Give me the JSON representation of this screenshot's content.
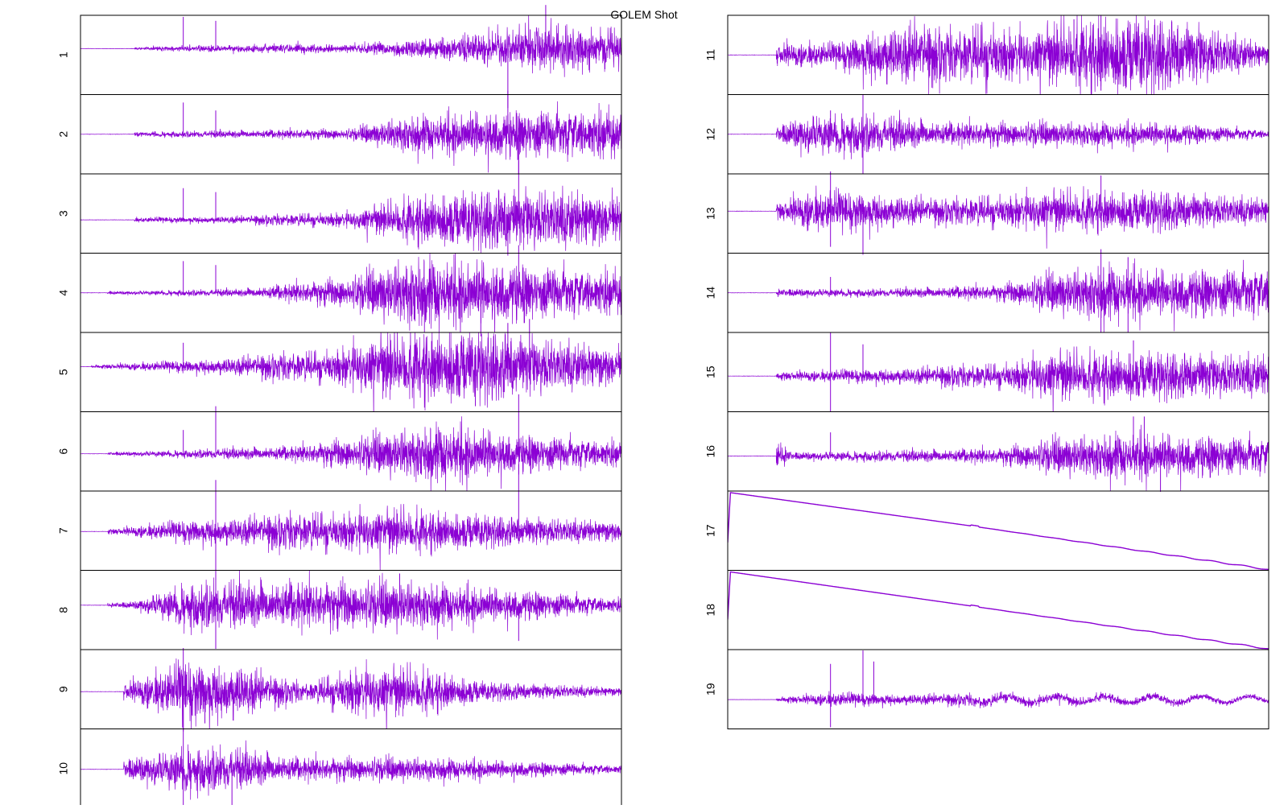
{
  "chart_data": {
    "type": "line",
    "title": "GOLEM Shot",
    "xlabel": "",
    "ylabel": "",
    "grid": false,
    "legend": "none",
    "series_color": "#8b00d4",
    "panels": [
      {
        "label": "1",
        "kind": "noise",
        "baseline": 0.42,
        "onset": 0.1,
        "env": [
          [
            0,
            0
          ],
          [
            0.1,
            0.02
          ],
          [
            0.3,
            0.05
          ],
          [
            0.5,
            0.06
          ],
          [
            0.6,
            0.1
          ],
          [
            0.75,
            0.2
          ],
          [
            0.88,
            0.3
          ],
          [
            1.0,
            0.22
          ]
        ],
        "spikes": [
          [
            0.19,
            0.4
          ],
          [
            0.25,
            0.35
          ],
          [
            0.79,
            -0.75
          ],
          [
            0.86,
            0.55
          ]
        ]
      },
      {
        "label": "2",
        "kind": "noise",
        "baseline": 0.5,
        "onset": 0.1,
        "env": [
          [
            0,
            0
          ],
          [
            0.1,
            0.03
          ],
          [
            0.3,
            0.05
          ],
          [
            0.5,
            0.07
          ],
          [
            0.6,
            0.22
          ],
          [
            0.75,
            0.3
          ],
          [
            0.9,
            0.3
          ],
          [
            1.0,
            0.28
          ]
        ],
        "spikes": [
          [
            0.19,
            0.4
          ],
          [
            0.25,
            0.3
          ],
          [
            0.79,
            0.55
          ],
          [
            0.81,
            -0.5
          ]
        ]
      },
      {
        "label": "3",
        "kind": "noise",
        "baseline": 0.58,
        "onset": 0.1,
        "env": [
          [
            0,
            0
          ],
          [
            0.1,
            0.03
          ],
          [
            0.3,
            0.05
          ],
          [
            0.5,
            0.1
          ],
          [
            0.62,
            0.3
          ],
          [
            0.78,
            0.38
          ],
          [
            0.9,
            0.35
          ],
          [
            1.0,
            0.3
          ]
        ],
        "spikes": [
          [
            0.19,
            0.4
          ],
          [
            0.25,
            0.35
          ],
          [
            0.81,
            0.75
          ],
          [
            0.79,
            -0.45
          ]
        ]
      },
      {
        "label": "4",
        "kind": "noise",
        "baseline": 0.5,
        "onset": 0.05,
        "env": [
          [
            0,
            0
          ],
          [
            0.05,
            0.02
          ],
          [
            0.3,
            0.05
          ],
          [
            0.5,
            0.2
          ],
          [
            0.62,
            0.45
          ],
          [
            0.75,
            0.4
          ],
          [
            0.9,
            0.3
          ],
          [
            1.0,
            0.25
          ]
        ],
        "spikes": [
          [
            0.19,
            0.4
          ],
          [
            0.25,
            0.35
          ],
          [
            0.74,
            -0.55
          ],
          [
            0.81,
            0.6
          ]
        ]
      },
      {
        "label": "5",
        "kind": "noise",
        "baseline": 0.43,
        "onset": 0.02,
        "env": [
          [
            0,
            0
          ],
          [
            0.02,
            0.02
          ],
          [
            0.2,
            0.08
          ],
          [
            0.45,
            0.2
          ],
          [
            0.6,
            0.45
          ],
          [
            0.75,
            0.45
          ],
          [
            0.9,
            0.3
          ],
          [
            1.0,
            0.22
          ]
        ],
        "spikes": [
          [
            0.19,
            0.3
          ],
          [
            0.79,
            0.55
          ],
          [
            0.73,
            -0.5
          ],
          [
            0.83,
            0.6
          ]
        ]
      },
      {
        "label": "6",
        "kind": "noise",
        "baseline": 0.53,
        "onset": 0.05,
        "env": [
          [
            0,
            0
          ],
          [
            0.05,
            0.02
          ],
          [
            0.2,
            0.05
          ],
          [
            0.4,
            0.1
          ],
          [
            0.55,
            0.25
          ],
          [
            0.68,
            0.38
          ],
          [
            0.8,
            0.25
          ],
          [
            1.0,
            0.15
          ]
        ],
        "spikes": [
          [
            0.19,
            0.3
          ],
          [
            0.25,
            0.6
          ],
          [
            0.81,
            0.75
          ]
        ]
      },
      {
        "label": "7",
        "kind": "noise",
        "baseline": 0.51,
        "onset": 0.05,
        "env": [
          [
            0,
            0
          ],
          [
            0.08,
            0.05
          ],
          [
            0.2,
            0.15
          ],
          [
            0.4,
            0.22
          ],
          [
            0.6,
            0.28
          ],
          [
            0.8,
            0.18
          ],
          [
            1.0,
            0.12
          ]
        ],
        "spikes": [
          [
            0.25,
            0.65
          ],
          [
            0.25,
            -0.45
          ],
          [
            0.81,
            0.85
          ]
        ]
      },
      {
        "label": "8",
        "kind": "noise",
        "baseline": 0.44,
        "onset": 0.05,
        "env": [
          [
            0,
            0
          ],
          [
            0.1,
            0.05
          ],
          [
            0.2,
            0.3
          ],
          [
            0.4,
            0.3
          ],
          [
            0.6,
            0.3
          ],
          [
            0.8,
            0.2
          ],
          [
            1.0,
            0.08
          ]
        ],
        "spikes": [
          [
            0.25,
            0.75
          ],
          [
            0.25,
            -0.55
          ],
          [
            0.59,
            0.4
          ],
          [
            0.81,
            -0.45
          ]
        ]
      },
      {
        "label": "9",
        "kind": "noise",
        "baseline": 0.53,
        "onset": 0.08,
        "env": [
          [
            0,
            0
          ],
          [
            0.1,
            0.15
          ],
          [
            0.2,
            0.4
          ],
          [
            0.3,
            0.35
          ],
          [
            0.35,
            0.2
          ],
          [
            0.42,
            0.1
          ],
          [
            0.5,
            0.3
          ],
          [
            0.62,
            0.3
          ],
          [
            0.75,
            0.12
          ],
          [
            1.0,
            0.05
          ]
        ],
        "spikes": [
          [
            0.19,
            0.55
          ],
          [
            0.19,
            -0.5
          ],
          [
            0.23,
            -0.4
          ]
        ]
      },
      {
        "label": "10",
        "kind": "noise",
        "baseline": 0.51,
        "onset": 0.08,
        "env": [
          [
            0,
            0
          ],
          [
            0.1,
            0.15
          ],
          [
            0.2,
            0.3
          ],
          [
            0.3,
            0.25
          ],
          [
            0.4,
            0.15
          ],
          [
            0.6,
            0.15
          ],
          [
            0.75,
            0.12
          ],
          [
            1.0,
            0.05
          ]
        ],
        "spikes": [
          [
            0.19,
            0.9
          ],
          [
            0.19,
            -0.55
          ],
          [
            0.28,
            -0.45
          ]
        ]
      },
      {
        "label": "11",
        "kind": "noise",
        "baseline": 0.5,
        "onset": 0.09,
        "env": [
          [
            0,
            0
          ],
          [
            0.09,
            0.15
          ],
          [
            0.2,
            0.15
          ],
          [
            0.27,
            0.35
          ],
          [
            0.35,
            0.4
          ],
          [
            0.42,
            0.3
          ],
          [
            0.48,
            0.4
          ],
          [
            0.55,
            0.3
          ],
          [
            0.65,
            0.45
          ],
          [
            0.75,
            0.5
          ],
          [
            0.85,
            0.4
          ],
          [
            1.0,
            0.12
          ]
        ],
        "spikes": [
          [
            0.64,
            0.45
          ],
          [
            0.69,
            0.5
          ],
          [
            0.69,
            -0.45
          ]
        ]
      },
      {
        "label": "12",
        "kind": "noise",
        "baseline": 0.5,
        "onset": 0.09,
        "env": [
          [
            0,
            0
          ],
          [
            0.09,
            0.1
          ],
          [
            0.15,
            0.25
          ],
          [
            0.25,
            0.25
          ],
          [
            0.4,
            0.15
          ],
          [
            0.6,
            0.15
          ],
          [
            0.8,
            0.15
          ],
          [
            1.0,
            0.05
          ]
        ],
        "spikes": [
          [
            0.19,
            0.3
          ],
          [
            0.25,
            0.5
          ],
          [
            0.25,
            -0.5
          ]
        ]
      },
      {
        "label": "13",
        "kind": "noise",
        "baseline": 0.47,
        "onset": 0.09,
        "env": [
          [
            0,
            0
          ],
          [
            0.09,
            0.1
          ],
          [
            0.15,
            0.25
          ],
          [
            0.25,
            0.25
          ],
          [
            0.4,
            0.15
          ],
          [
            0.6,
            0.25
          ],
          [
            0.8,
            0.25
          ],
          [
            1.0,
            0.15
          ]
        ],
        "spikes": [
          [
            0.19,
            0.5
          ],
          [
            0.19,
            -0.45
          ],
          [
            0.25,
            -0.55
          ],
          [
            0.69,
            0.45
          ]
        ]
      },
      {
        "label": "14",
        "kind": "noise",
        "baseline": 0.5,
        "onset": 0.09,
        "env": [
          [
            0,
            0
          ],
          [
            0.09,
            0.05
          ],
          [
            0.3,
            0.05
          ],
          [
            0.5,
            0.1
          ],
          [
            0.6,
            0.25
          ],
          [
            0.7,
            0.35
          ],
          [
            0.8,
            0.3
          ],
          [
            1.0,
            0.3
          ]
        ],
        "spikes": [
          [
            0.19,
            0.2
          ],
          [
            0.69,
            0.55
          ],
          [
            0.69,
            -0.5
          ],
          [
            0.74,
            0.45
          ],
          [
            0.74,
            -0.5
          ]
        ]
      },
      {
        "label": "15",
        "kind": "noise",
        "baseline": 0.55,
        "onset": 0.09,
        "env": [
          [
            0,
            0
          ],
          [
            0.09,
            0.05
          ],
          [
            0.3,
            0.1
          ],
          [
            0.5,
            0.15
          ],
          [
            0.6,
            0.3
          ],
          [
            0.8,
            0.3
          ],
          [
            1.0,
            0.25
          ]
        ],
        "spikes": [
          [
            0.19,
            0.55
          ],
          [
            0.19,
            -0.45
          ],
          [
            0.25,
            0.4
          ],
          [
            0.75,
            0.45
          ]
        ]
      },
      {
        "label": "16",
        "kind": "noise",
        "baseline": 0.56,
        "onset": 0.09,
        "env": [
          [
            0,
            0
          ],
          [
            0.09,
            0.2
          ],
          [
            0.12,
            0.05
          ],
          [
            0.3,
            0.07
          ],
          [
            0.5,
            0.1
          ],
          [
            0.6,
            0.22
          ],
          [
            0.75,
            0.3
          ],
          [
            0.9,
            0.25
          ],
          [
            1.0,
            0.22
          ]
        ],
        "spikes": [
          [
            0.19,
            0.3
          ],
          [
            0.75,
            0.5
          ],
          [
            0.8,
            -0.45
          ],
          [
            0.77,
            0.5
          ]
        ]
      },
      {
        "label": "17",
        "kind": "ramp",
        "start": 0.65,
        "peak_x": 0.005,
        "peak": 0.02,
        "mid_x": 0.45,
        "mid": 0.44,
        "end": 0.99
      },
      {
        "label": "18",
        "kind": "ramp",
        "start": 0.62,
        "peak_x": 0.005,
        "peak": 0.02,
        "mid_x": 0.45,
        "mid": 0.45,
        "end": 0.99
      },
      {
        "label": "19",
        "kind": "drift",
        "baseline": 0.63,
        "onset": 0.09,
        "env": [
          [
            0,
            0
          ],
          [
            0.02,
            0.12
          ],
          [
            0.05,
            0.02
          ],
          [
            0.09,
            0.05
          ],
          [
            0.2,
            0.15
          ],
          [
            0.3,
            0.12
          ],
          [
            0.45,
            0.12
          ],
          [
            0.6,
            0.1
          ],
          [
            0.8,
            0.08
          ],
          [
            1.0,
            0.05
          ]
        ],
        "spikes": [
          [
            0.19,
            0.45
          ],
          [
            0.19,
            -0.35
          ],
          [
            0.25,
            0.62
          ],
          [
            0.27,
            0.48
          ]
        ]
      }
    ]
  }
}
